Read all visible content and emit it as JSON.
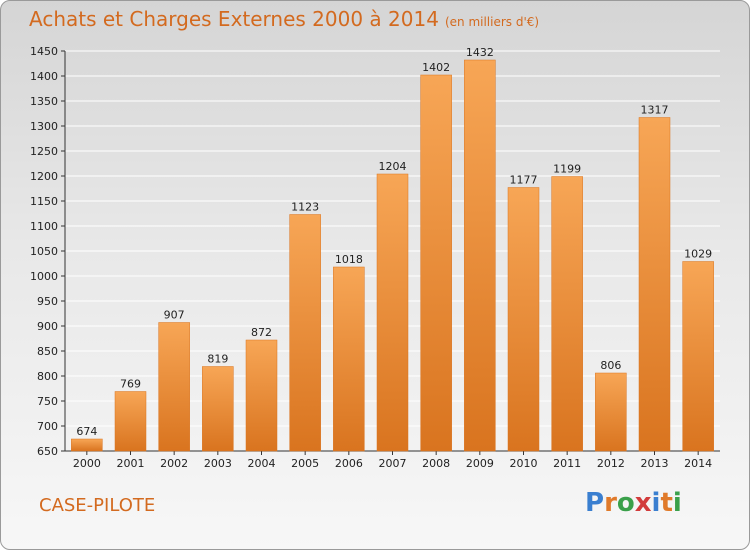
{
  "header": {
    "title": "Achats et Charges Externes 2000 à 2014",
    "subtitle": "(en milliers d'€)"
  },
  "footer": {
    "place": "CASE-PILOTE",
    "logo": "Proxiti"
  },
  "colors": {
    "bar_light": "#f7a656",
    "bar_dark": "#d9741f",
    "title": "#d36a1f",
    "logo_letters": [
      "#3a7fd0",
      "#e07a2a",
      "#3aa04a",
      "#d23b3b",
      "#3a7fd0",
      "#e07a2a",
      "#3aa04a"
    ]
  },
  "chart_data": {
    "type": "bar",
    "title": "Achats et Charges Externes 2000 à 2014",
    "subtitle": "(en milliers d'€)",
    "categories": [
      "2000",
      "2001",
      "2002",
      "2003",
      "2004",
      "2005",
      "2006",
      "2007",
      "2008",
      "2009",
      "2010",
      "2011",
      "2012",
      "2013",
      "2014"
    ],
    "values": [
      674,
      769,
      907,
      819,
      872,
      1123,
      1018,
      1204,
      1402,
      1432,
      1177,
      1199,
      806,
      1317,
      1029
    ],
    "ylim": [
      650,
      1450
    ],
    "yticks": [
      650,
      700,
      750,
      800,
      850,
      900,
      950,
      1000,
      1050,
      1100,
      1150,
      1200,
      1250,
      1300,
      1350,
      1400,
      1450
    ],
    "grid": true,
    "xlabel": "",
    "ylabel": ""
  }
}
